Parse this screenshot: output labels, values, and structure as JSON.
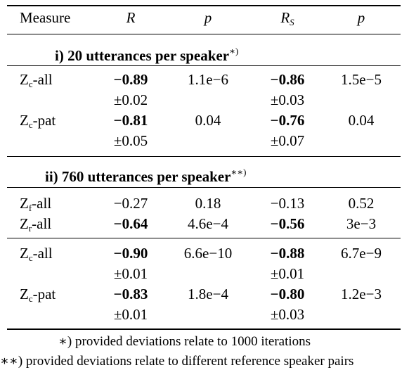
{
  "header": {
    "measure": "Measure",
    "r": "R",
    "p1": "p",
    "rs_main": "R",
    "rs_sub": "S",
    "p2": "p"
  },
  "section1": {
    "title": "i) 20 utterances per speaker",
    "marker": "∗)"
  },
  "section2": {
    "title": "ii) 760 utterances per speaker",
    "marker": "∗∗)"
  },
  "rows": {
    "zc_all_1": {
      "z": "Z",
      "sub": "c",
      "suffix": "-all",
      "r": "−0.89",
      "r_dev": "±0.02",
      "p1": "1.1e−6",
      "rs": "−0.86",
      "rs_dev": "±0.03",
      "p2": "1.5e−5"
    },
    "zc_pat_1": {
      "z": "Z",
      "sub": "c",
      "suffix": "-pat",
      "r": "−0.81",
      "r_dev": "±0.05",
      "p1": "0.04",
      "rs": "−0.76",
      "rs_dev": "±0.07",
      "p2": "0.04"
    },
    "zf_all": {
      "z": "Z",
      "sub": "f",
      "suffix": "-all",
      "r": "−0.27",
      "p1": "0.18",
      "rs": "−0.13",
      "p2": "0.52"
    },
    "zr_all": {
      "z": "Z",
      "sub": "r",
      "suffix": "-all",
      "r": "−0.64",
      "p1": "4.6e−4",
      "rs": "−0.56",
      "p2": "3e−3"
    },
    "zc_all_2": {
      "z": "Z",
      "sub": "c",
      "suffix": "-all",
      "r": "−0.90",
      "r_dev": "±0.01",
      "p1": "6.6e−10",
      "rs": "−0.88",
      "rs_dev": "±0.01",
      "p2": "6.7e−9"
    },
    "zc_pat_2": {
      "z": "Z",
      "sub": "c",
      "suffix": "-pat",
      "r": "−0.83",
      "r_dev": "±0.01",
      "p1": "1.8e−4",
      "rs": "−0.80",
      "rs_dev": "±0.03",
      "p2": "1.2e−3"
    }
  },
  "footnotes": {
    "f1": "∗) provided deviations relate to 1000 iterations",
    "f2": "∗∗) provided deviations relate to different reference speaker pairs"
  }
}
